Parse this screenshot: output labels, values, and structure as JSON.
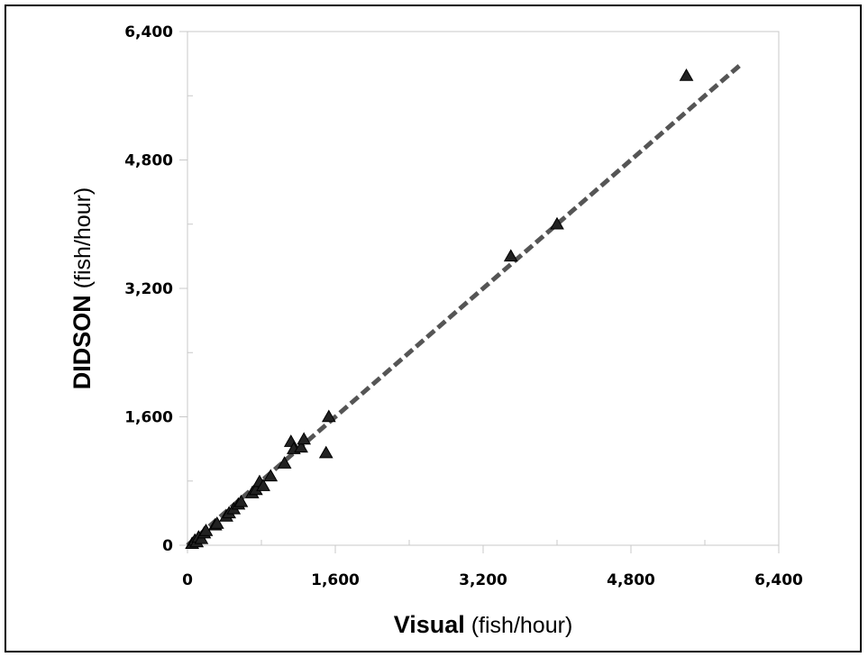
{
  "chart_data": {
    "type": "scatter",
    "xlabel": {
      "bold": "Visual",
      "normal": " (fish/hour)"
    },
    "ylabel": {
      "bold": "DIDSON",
      "normal": " (fish/hour)"
    },
    "xlim": [
      0,
      6400
    ],
    "ylim": [
      0,
      6400
    ],
    "major_ticks": [
      0,
      1600,
      3200,
      4800,
      6400
    ],
    "minor_ticks": [
      800,
      2400,
      4000,
      5600
    ],
    "tick_labels": [
      "0",
      "1,600",
      "3,200",
      "4,800",
      "6,400"
    ],
    "grid": false,
    "legend": "none",
    "marker": "triangle",
    "marker_color": "#222222",
    "trendline": {
      "style": "dashed",
      "color": "#555555",
      "slope": 1.0,
      "intercept": 0,
      "x_range": [
        0,
        6000
      ]
    },
    "points": [
      {
        "x": 50,
        "y": 20
      },
      {
        "x": 80,
        "y": 60
      },
      {
        "x": 100,
        "y": 40
      },
      {
        "x": 120,
        "y": 100
      },
      {
        "x": 150,
        "y": 80
      },
      {
        "x": 180,
        "y": 150
      },
      {
        "x": 200,
        "y": 180
      },
      {
        "x": 300,
        "y": 250
      },
      {
        "x": 320,
        "y": 270
      },
      {
        "x": 420,
        "y": 360
      },
      {
        "x": 450,
        "y": 400
      },
      {
        "x": 500,
        "y": 450
      },
      {
        "x": 550,
        "y": 510
      },
      {
        "x": 580,
        "y": 540
      },
      {
        "x": 700,
        "y": 650
      },
      {
        "x": 740,
        "y": 690
      },
      {
        "x": 780,
        "y": 790
      },
      {
        "x": 820,
        "y": 740
      },
      {
        "x": 900,
        "y": 860
      },
      {
        "x": 1050,
        "y": 1020
      },
      {
        "x": 1120,
        "y": 1290
      },
      {
        "x": 1150,
        "y": 1200
      },
      {
        "x": 1230,
        "y": 1220
      },
      {
        "x": 1260,
        "y": 1320
      },
      {
        "x": 1500,
        "y": 1150
      },
      {
        "x": 1530,
        "y": 1600
      },
      {
        "x": 3500,
        "y": 3600
      },
      {
        "x": 4000,
        "y": 4000
      },
      {
        "x": 5400,
        "y": 5850
      }
    ]
  }
}
